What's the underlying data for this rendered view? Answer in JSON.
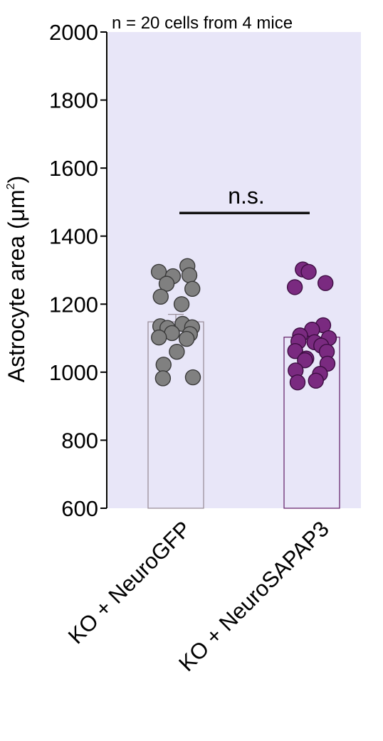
{
  "chart_data": {
    "type": "scatter",
    "subtitle": "n = 20 cells from 4 mice",
    "ylabel_main": "Astrocyte area (μm",
    "ylabel_sup": "2",
    "ylabel_close": ")",
    "ylim": [
      600,
      2000
    ],
    "yticks": [
      600,
      800,
      1000,
      1200,
      1400,
      1600,
      1800,
      2000
    ],
    "categories": [
      "KO + NeuroGFP",
      "KO + NeuroSAPAP3"
    ],
    "bar_means": [
      1148,
      1103
    ],
    "error_tops": [
      1170,
      1105
    ],
    "significance": "n.s.",
    "sig_line_level": 1468,
    "background_color": "#e8e6f8",
    "colors": {
      "gfp_fill": "#808080",
      "gfp_edge": "#3a3a3a",
      "gfp_bar": "#9a8f9a",
      "sapap_fill": "#7a2a80",
      "sapap_edge": "#3d0d42",
      "sapap_bar": "#6a2a70"
    },
    "series": [
      {
        "category": "KO + NeuroGFP",
        "points": [
          1312,
          1295,
          1285,
          1282,
          1260,
          1245,
          1222,
          1200,
          1142,
          1135,
          1132,
          1130,
          1115,
          1112,
          1102,
          1098,
          1060,
          1022,
          985,
          982
        ]
      },
      {
        "category": "KO + NeuroSAPAP3",
        "points": [
          1302,
          1295,
          1262,
          1250,
          1138,
          1125,
          1108,
          1100,
          1090,
          1088,
          1078,
          1062,
          1060,
          1040,
          1035,
          1025,
          1005,
          995,
          975,
          970
        ]
      }
    ]
  }
}
